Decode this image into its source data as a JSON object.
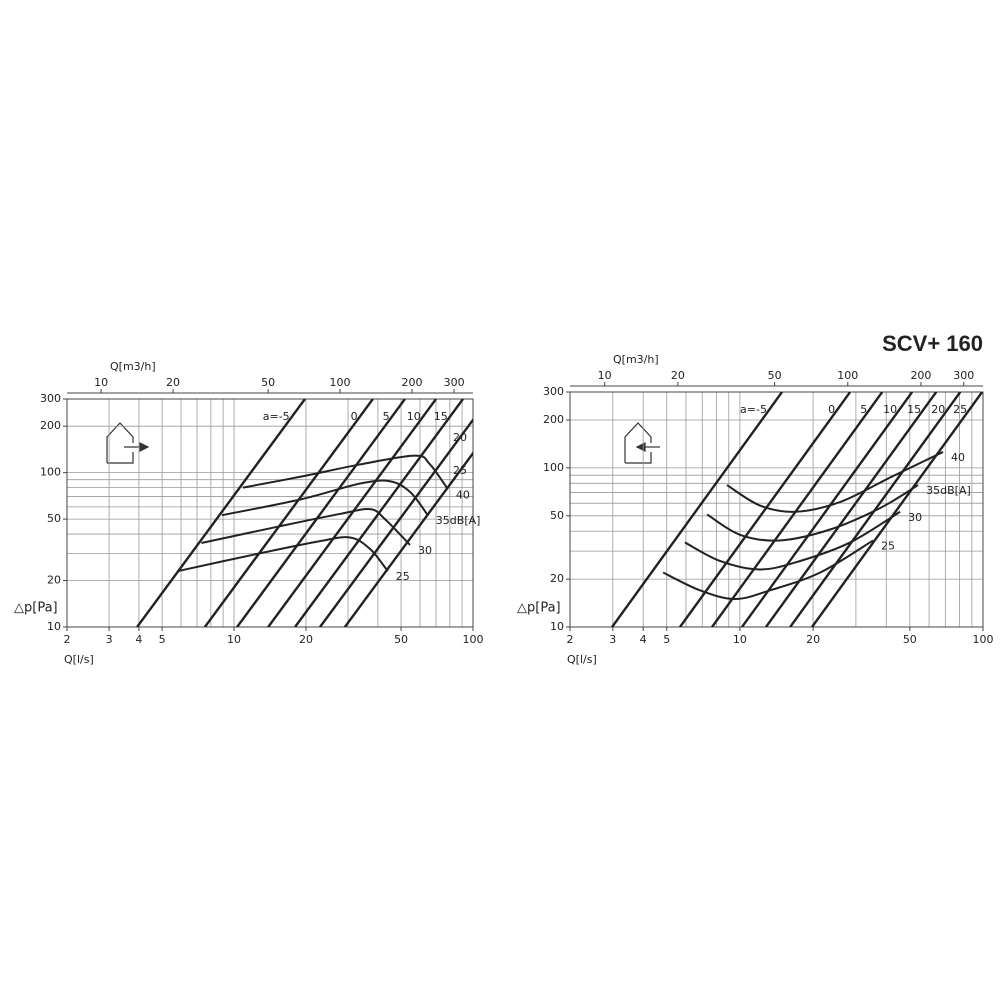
{
  "title": "SCV+ 160",
  "chart_data": [
    {
      "type": "line",
      "log_x": true,
      "log_y": true,
      "grid": true,
      "color": "#222",
      "xlabel": "Q[l/s]",
      "ylabel": "△p[Pa]",
      "x2label": "Q[m3/h]",
      "xlim": [
        2,
        100
      ],
      "ylim": [
        10,
        300
      ],
      "x2lim": [
        7.2,
        360
      ],
      "xticks": [
        2,
        3,
        4,
        5,
        10,
        20,
        50,
        100
      ],
      "yticks": [
        10,
        20,
        50,
        100,
        200,
        300
      ],
      "x2ticks": [
        10,
        20,
        50,
        100,
        200,
        300
      ],
      "xgrid": [
        3,
        4,
        5,
        6,
        7,
        8,
        9,
        10,
        20,
        30,
        40,
        50,
        60,
        70,
        80,
        90
      ],
      "ygrid": [
        20,
        30,
        40,
        50,
        60,
        70,
        80,
        90,
        100,
        200
      ],
      "series": [
        {
          "name": "a=-5",
          "x": [
            3.93,
            19.8
          ],
          "values": [
            10,
            300
          ]
        },
        {
          "name": "0",
          "x": [
            7.55,
            38.1
          ],
          "values": [
            10,
            300
          ]
        },
        {
          "name": "5",
          "x": [
            10.3,
            51.9
          ],
          "values": [
            10,
            300
          ]
        },
        {
          "name": "10",
          "x": [
            13.9,
            70.0
          ],
          "values": [
            10,
            300
          ]
        },
        {
          "name": "15",
          "x": [
            18.0,
            90.8
          ],
          "values": [
            10,
            300
          ]
        },
        {
          "name": "20",
          "x": [
            22.9,
            116
          ],
          "values": [
            10,
            300
          ]
        },
        {
          "name": "25",
          "x": [
            29.1,
            147
          ],
          "values": [
            10,
            300
          ]
        }
      ],
      "noise_series": [
        {
          "name": "40",
          "x": [
            10.9,
            18.9,
            33.7,
            57.2,
            66.1,
            78.5
          ],
          "values": [
            80,
            94,
            113,
            129,
            113,
            78
          ]
        },
        {
          "name": "35dB[A]",
          "x": [
            8.9,
            18.9,
            33.7,
            44.9,
            54.5,
            64.7
          ],
          "values": [
            53,
            67,
            85,
            88,
            75,
            53
          ]
        },
        {
          "name": "30",
          "x": [
            7.3,
            15.6,
            27.7,
            37.1,
            42.8,
            54.5
          ],
          "values": [
            35,
            45,
            54,
            58,
            50,
            34
          ]
        },
        {
          "name": "25",
          "x": [
            5.8,
            12.8,
            22.9,
            30.6,
            37.1,
            44.0
          ],
          "values": [
            23,
            30,
            36,
            38,
            32,
            23
          ]
        }
      ]
    },
    {
      "type": "line",
      "log_x": true,
      "log_y": true,
      "grid": true,
      "color": "#222",
      "xlabel": "Q[l/s]",
      "ylabel": "△p[Pa]",
      "x2label": "Q[m3/h]",
      "xlim": [
        2,
        100
      ],
      "ylim": [
        10,
        300
      ],
      "x2lim": [
        7.2,
        360
      ],
      "xticks": [
        2,
        3,
        4,
        5,
        10,
        20,
        50,
        100
      ],
      "yticks": [
        10,
        20,
        50,
        100,
        200,
        300
      ],
      "x2ticks": [
        10,
        20,
        50,
        100,
        200,
        300
      ],
      "xgrid": [
        3,
        4,
        5,
        6,
        7,
        8,
        9,
        10,
        20,
        30,
        40,
        50,
        60,
        70,
        80,
        90
      ],
      "ygrid": [
        20,
        30,
        40,
        50,
        60,
        70,
        80,
        90,
        100,
        200
      ],
      "series": [
        {
          "name": "a=-5",
          "x": [
            2.98,
            14.9
          ],
          "values": [
            10,
            300
          ]
        },
        {
          "name": "0",
          "x": [
            5.67,
            28.4
          ],
          "values": [
            10,
            300
          ]
        },
        {
          "name": "5",
          "x": [
            7.68,
            38.5
          ],
          "values": [
            10,
            300
          ]
        },
        {
          "name": "10",
          "x": [
            10.2,
            51.1
          ],
          "values": [
            10,
            300
          ]
        },
        {
          "name": "15",
          "x": [
            12.8,
            64.2
          ],
          "values": [
            10,
            300
          ]
        },
        {
          "name": "20",
          "x": [
            16.1,
            80.6
          ],
          "values": [
            10,
            300
          ]
        },
        {
          "name": "25",
          "x": [
            19.8,
            99.2
          ],
          "values": [
            10,
            300
          ]
        }
      ],
      "noise_series": [
        {
          "name": "40",
          "x": [
            8.85,
            12.1,
            16.9,
            25.8,
            41.5,
            68.5
          ],
          "values": [
            78,
            58,
            53,
            61,
            87,
            126
          ]
        },
        {
          "name": "35dB[A]",
          "x": [
            7.33,
            10.0,
            14.6,
            23.5,
            37.8,
            54.1
          ],
          "values": [
            51,
            38,
            35,
            41,
            56,
            78
          ]
        },
        {
          "name": "30",
          "x": [
            5.94,
            8.28,
            12.1,
            17.7,
            28.4,
            45.6
          ],
          "values": [
            34,
            26,
            23,
            26,
            34,
            53
          ]
        },
        {
          "name": "25",
          "x": [
            4.83,
            6.85,
            9.55,
            13.3,
            21.4,
            35.3
          ],
          "values": [
            22,
            17,
            15,
            17,
            22,
            35
          ]
        }
      ]
    }
  ]
}
